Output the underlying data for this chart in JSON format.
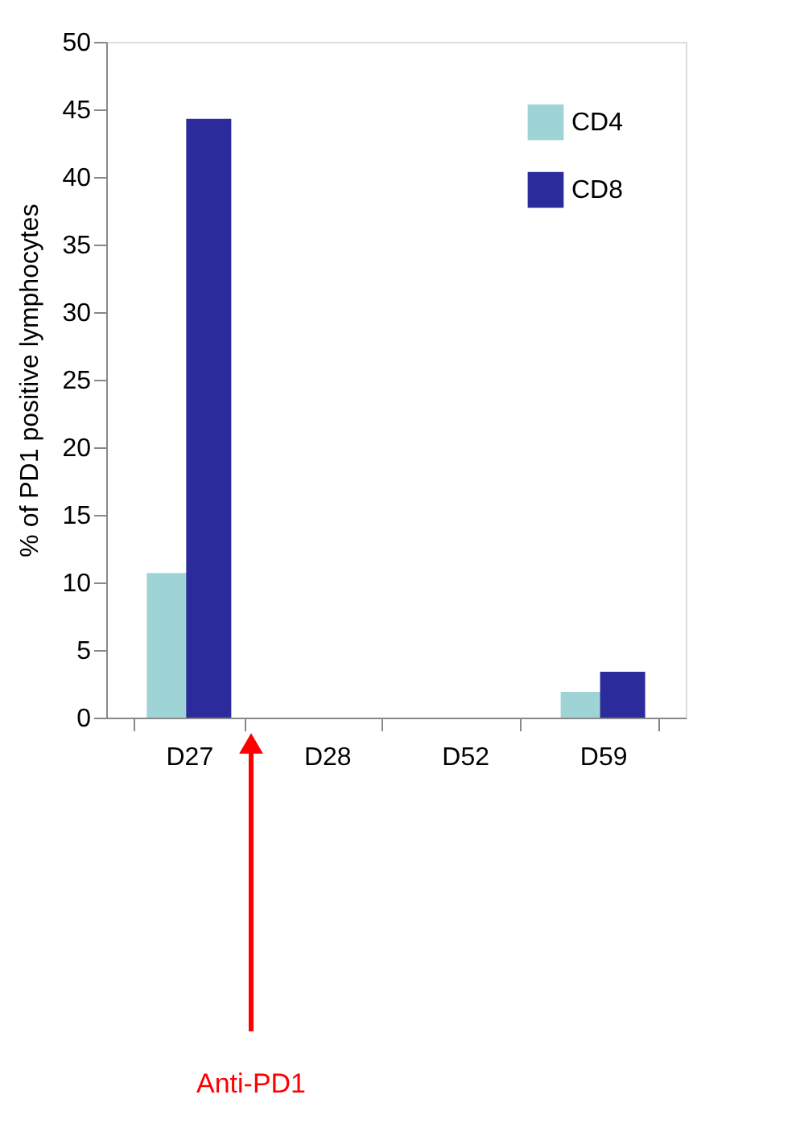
{
  "chart_data": {
    "type": "bar",
    "ylabel": "% of PD1 positive lymphocytes",
    "categories": [
      "D27",
      "D28",
      "D52",
      "D59"
    ],
    "series": [
      {
        "name": "CD4",
        "color": "#9fd4d6",
        "values": [
          10.7,
          0,
          0,
          1.9
        ]
      },
      {
        "name": "CD8",
        "color": "#2b2b9b",
        "values": [
          44.3,
          0,
          0,
          3.4
        ]
      }
    ],
    "ylim": [
      0,
      50
    ],
    "yticks": [
      0,
      5,
      10,
      15,
      20,
      25,
      30,
      35,
      40,
      45,
      50
    ],
    "grid": false,
    "legend": "top right",
    "annotations": [
      "Anti-PD1"
    ]
  }
}
